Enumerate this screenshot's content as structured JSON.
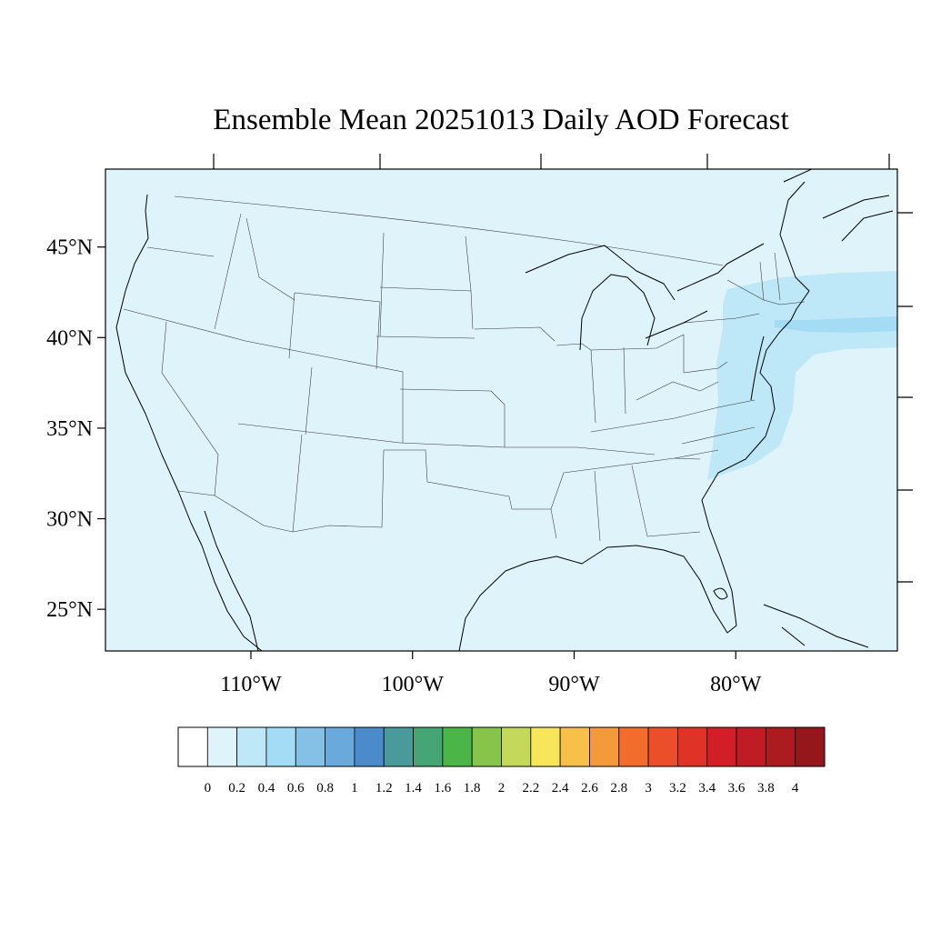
{
  "title": "Ensemble Mean 20251013 Daily AOD Forecast",
  "map": {
    "lon_range": [
      -119,
      -70
    ],
    "lat_range": [
      22.7,
      49.3
    ],
    "background_color": "#dff3fb",
    "plume_colors": [
      "#bee7f7",
      "#a4dcf5"
    ],
    "lat_ticks": [
      {
        "value": 45,
        "label": "45°N"
      },
      {
        "value": 40,
        "label": "40°N"
      },
      {
        "value": 35,
        "label": "35°N"
      },
      {
        "value": 30,
        "label": "30°N"
      },
      {
        "value": 25,
        "label": "25°N"
      }
    ],
    "lon_ticks": [
      {
        "value": -110,
        "label": "110°W"
      },
      {
        "value": -100,
        "label": "100°W"
      },
      {
        "value": -90,
        "label": "90°W"
      },
      {
        "value": -80,
        "label": "80°W"
      }
    ]
  },
  "colorbar": {
    "colors": [
      "#ffffff",
      "#dff3fb",
      "#bee7f7",
      "#a4dcf5",
      "#85c1e6",
      "#6aa9dc",
      "#4b8bcc",
      "#4a9a9c",
      "#45a574",
      "#4bb54a",
      "#87c54a",
      "#c4d95a",
      "#f7e65a",
      "#f8c048",
      "#f59a3b",
      "#f26c2c",
      "#ea4f2a",
      "#de3326",
      "#d21f27",
      "#bf1c25",
      "#ac1b1f",
      "#95171b"
    ],
    "labels": [
      "0",
      "0.2",
      "0.4",
      "0.6",
      "0.8",
      "1",
      "1.2",
      "1.4",
      "1.6",
      "1.8",
      "2",
      "2.2",
      "2.4",
      "2.6",
      "2.8",
      "3",
      "3.2",
      "3.4",
      "3.6",
      "3.8",
      "4"
    ]
  }
}
